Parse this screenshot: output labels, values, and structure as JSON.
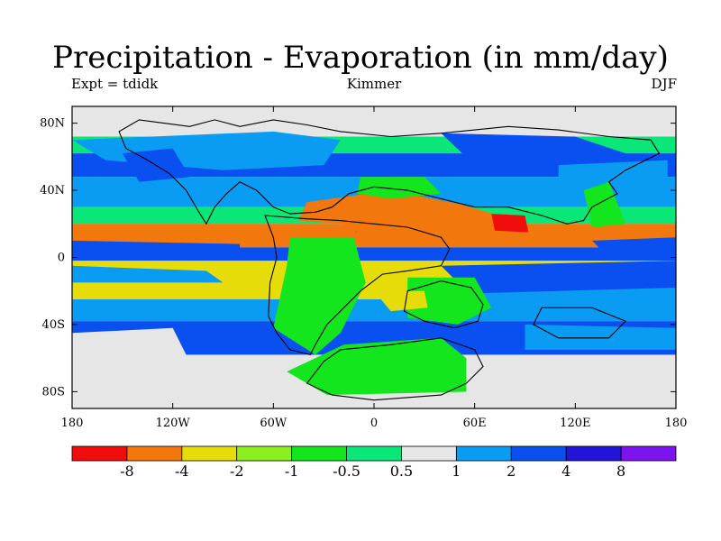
{
  "title": "Precipitation - Evaporation (in mm/day)",
  "subtitle_left": "Expt = tdidk",
  "subtitle_center": "Kimmer",
  "subtitle_right": "DJF",
  "map": {
    "lon_range": [
      -180,
      180
    ],
    "lat_range": [
      -90,
      90
    ],
    "x_ticks": [
      {
        "lon": -180,
        "label": "180"
      },
      {
        "lon": -120,
        "label": "120W"
      },
      {
        "lon": -60,
        "label": "60W"
      },
      {
        "lon": 0,
        "label": "0"
      },
      {
        "lon": 60,
        "label": "60E"
      },
      {
        "lon": 120,
        "label": "120E"
      },
      {
        "lon": 180,
        "label": "180"
      }
    ],
    "y_ticks": [
      {
        "lat": 80,
        "label": "80N"
      },
      {
        "lat": 40,
        "label": "40N"
      },
      {
        "lat": 0,
        "label": "0"
      },
      {
        "lat": -40,
        "label": "40S"
      },
      {
        "lat": -80,
        "label": "80S"
      }
    ]
  },
  "colorbar": {
    "colors": [
      "#f20d0d",
      "#f2780d",
      "#e6dc0a",
      "#8cf020",
      "#14e61e",
      "#0ae678",
      "#e6e6e6",
      "#0a9bf2",
      "#0a50f0",
      "#2214d8",
      "#7d14f0"
    ],
    "labels": [
      "-8",
      "-4",
      "-2",
      "-1",
      "-0.5",
      "0.5",
      "1",
      "2",
      "4",
      "8"
    ]
  },
  "fields": {
    "band_colors": {
      "north_polar": "#e6e6e6",
      "north_arctic": "#0ae678",
      "north_storm": "#0a50f0",
      "north_midlat": "#0a9bf2",
      "north_subtrop": "#0ae678",
      "trade_dry": "#f2780d",
      "itcz": "#0a50f0",
      "south_dry": "#e6dc0a",
      "south_subtrop": "#0a9bf2",
      "south_storm": "#0a50f0",
      "south_polar": "#e6e6e6",
      "land_wet": "#14e61e",
      "land_dry": "#f2780d",
      "land_very_dry": "#f20d0d"
    }
  }
}
